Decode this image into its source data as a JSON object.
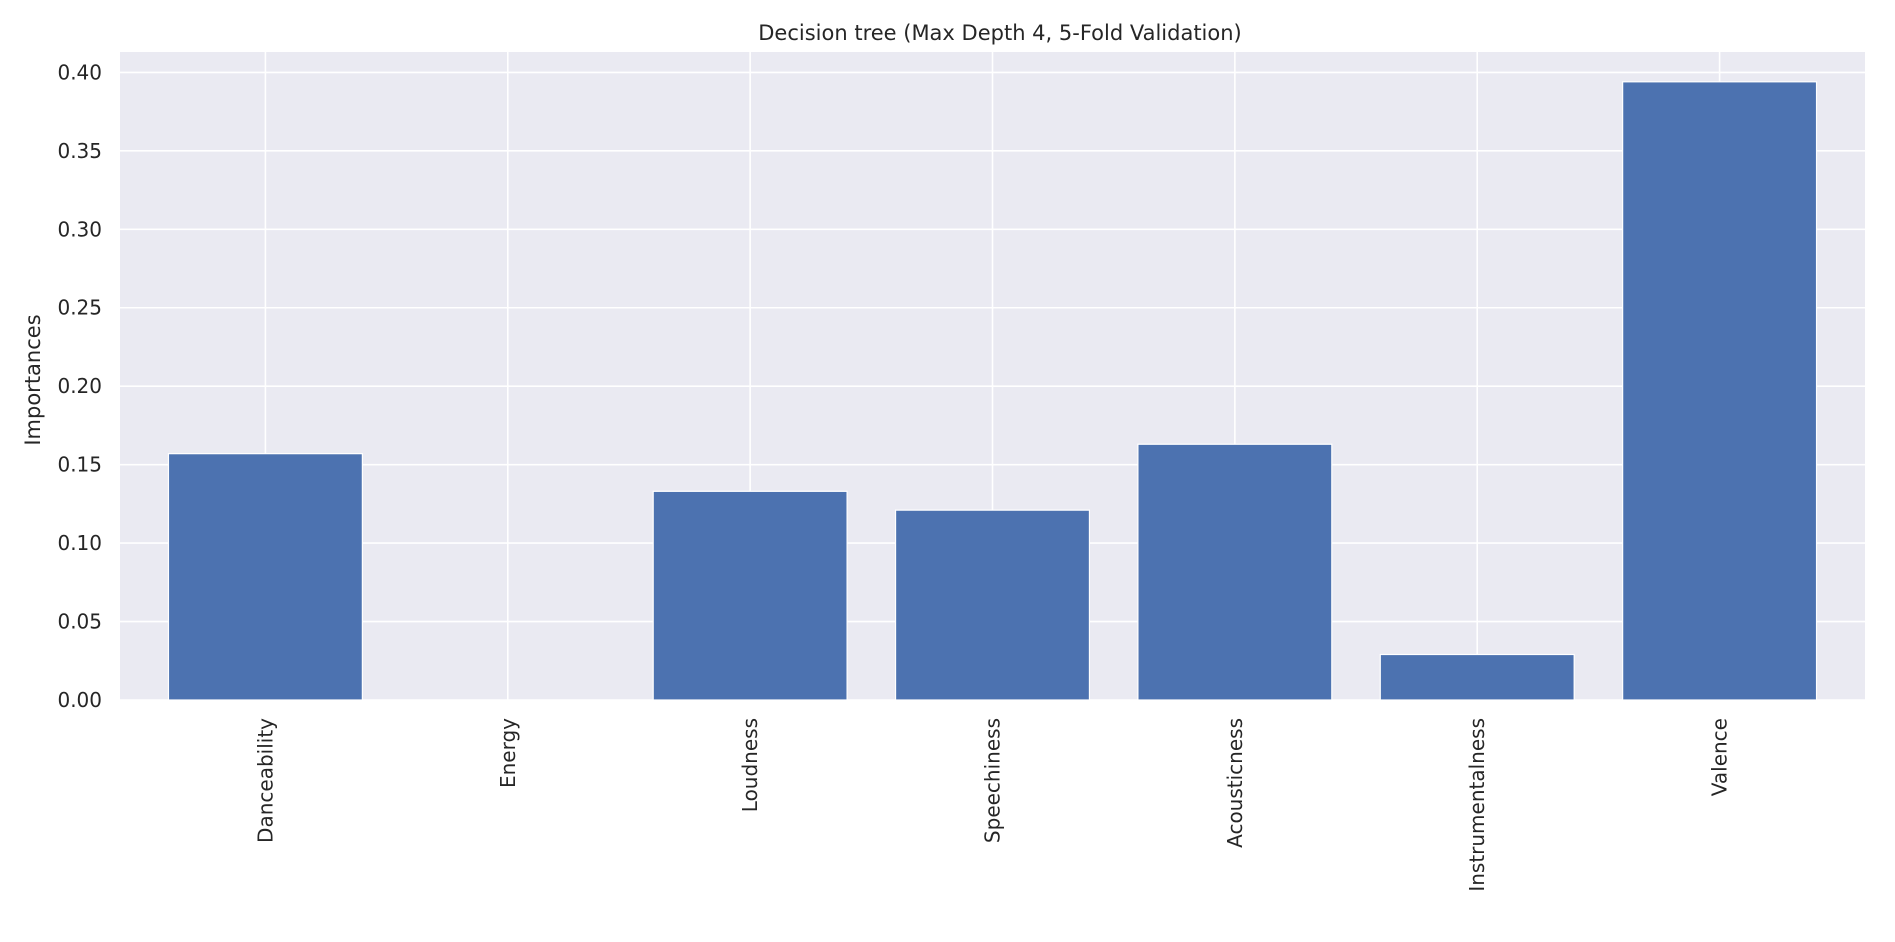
{
  "chart_data": {
    "type": "bar",
    "title": "Decision tree (Max Depth 4, 5-Fold Validation)",
    "xlabel": "",
    "ylabel": "Importances",
    "categories": [
      "Danceability",
      "Energy",
      "Loudness",
      "Speechiness",
      "Acousticness",
      "Instrumentalness",
      "Valence"
    ],
    "values": [
      0.157,
      0.0,
      0.133,
      0.121,
      0.163,
      0.029,
      0.394
    ],
    "ylim": [
      0,
      0.413
    ],
    "yticks": [
      "0.00",
      "0.05",
      "0.10",
      "0.15",
      "0.20",
      "0.25",
      "0.30",
      "0.35",
      "0.40"
    ],
    "grid": true,
    "colors": {
      "bar": "#4c72b0",
      "background": "#eaeaf2",
      "grid": "#ffffff"
    }
  }
}
